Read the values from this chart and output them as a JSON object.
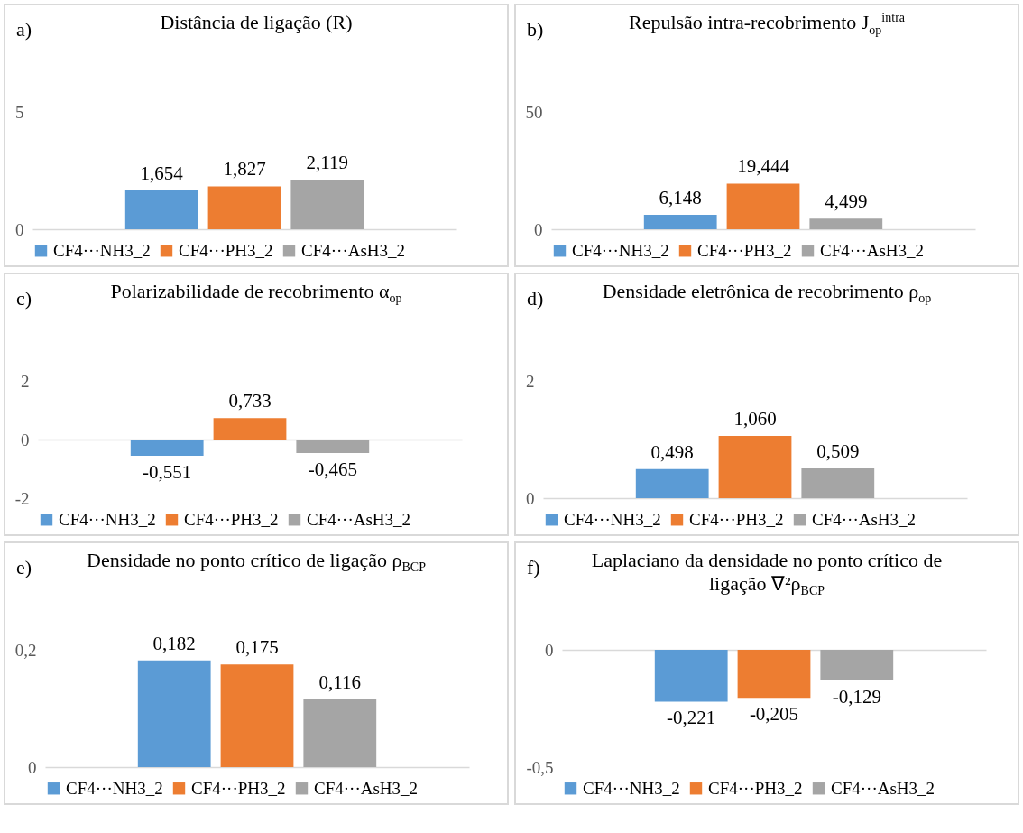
{
  "chart_data": [
    {
      "type": "bar",
      "title": "Distância de ligação (R)",
      "annotations": [
        "a)"
      ],
      "categories": [
        null
      ],
      "series": [
        {
          "name": "CF4···NH3_2",
          "color": "#5b9bd5",
          "values": [
            1.654
          ],
          "value_labels": [
            "1,654"
          ]
        },
        {
          "name": "CF4···PH3_2",
          "color": "#ed7d31",
          "values": [
            1.827
          ],
          "value_labels": [
            "1,827"
          ]
        },
        {
          "name": "CF4···AsH3_2",
          "color": "#a5a5a5",
          "values": [
            2.119
          ],
          "value_labels": [
            "2,119"
          ]
        }
      ],
      "ylim": [
        0,
        5
      ],
      "yticks": [
        0,
        5
      ],
      "legend": "bottom"
    },
    {
      "type": "bar",
      "title": "Repulsão intra-recobrimento J$_{op}$$^{intra}$",
      "annotations": [
        "b)"
      ],
      "categories": [
        null
      ],
      "series": [
        {
          "name": "CF4···NH3_2",
          "color": "#5b9bd5",
          "values": [
            6.148
          ],
          "value_labels": [
            "6,148"
          ]
        },
        {
          "name": "CF4···PH3_2",
          "color": "#ed7d31",
          "values": [
            19.444
          ],
          "value_labels": [
            "19,444"
          ]
        },
        {
          "name": "CF4···AsH3_2",
          "color": "#a5a5a5",
          "values": [
            4.499
          ],
          "value_labels": [
            "4,499"
          ]
        }
      ],
      "ylim": [
        0,
        50
      ],
      "yticks": [
        0,
        50
      ],
      "legend": "bottom"
    },
    {
      "type": "bar",
      "title": "Polarizabilidade de recobrimento α$_{op}$",
      "annotations": [
        "c)"
      ],
      "categories": [
        null
      ],
      "series": [
        {
          "name": "CF4···NH3_2",
          "color": "#5b9bd5",
          "values": [
            -0.551
          ],
          "value_labels": [
            "-0,551"
          ]
        },
        {
          "name": "CF4···PH3_2",
          "color": "#ed7d31",
          "values": [
            0.733
          ],
          "value_labels": [
            "0,733"
          ]
        },
        {
          "name": "CF4···AsH3_2",
          "color": "#a5a5a5",
          "values": [
            -0.465
          ],
          "value_labels": [
            "-0,465"
          ]
        }
      ],
      "ylim": [
        -2,
        2
      ],
      "yticks": [
        -2,
        0,
        2
      ],
      "legend": "bottom"
    },
    {
      "type": "bar",
      "title": "Densidade eletrônica de recobrimento ρ$_{op}$",
      "annotations": [
        "d)"
      ],
      "categories": [
        null
      ],
      "series": [
        {
          "name": "CF4···NH3_2",
          "color": "#5b9bd5",
          "values": [
            0.498
          ],
          "value_labels": [
            "0,498"
          ]
        },
        {
          "name": "CF4···PH3_2",
          "color": "#ed7d31",
          "values": [
            1.06
          ],
          "value_labels": [
            "1,060"
          ]
        },
        {
          "name": "CF4···AsH3_2",
          "color": "#a5a5a5",
          "values": [
            0.509
          ],
          "value_labels": [
            "0,509"
          ]
        }
      ],
      "ylim": [
        0,
        2
      ],
      "yticks": [
        0,
        2
      ],
      "legend": "bottom"
    },
    {
      "type": "bar",
      "title": "Densidade no ponto crítico de ligação ρ$_{BCP}$",
      "annotations": [
        "e)"
      ],
      "categories": [
        null
      ],
      "series": [
        {
          "name": "CF4···NH3_2",
          "color": "#5b9bd5",
          "values": [
            0.182
          ],
          "value_labels": [
            "0,182"
          ]
        },
        {
          "name": "CF4···PH3_2",
          "color": "#ed7d31",
          "values": [
            0.175
          ],
          "value_labels": [
            "0,175"
          ]
        },
        {
          "name": "CF4···AsH3_2",
          "color": "#a5a5a5",
          "values": [
            0.116
          ],
          "value_labels": [
            "0,116"
          ]
        }
      ],
      "ylim": [
        0,
        0.2
      ],
      "yticks": [
        0,
        {
          "value": 0.2,
          "label": "0,2"
        }
      ],
      "legend": "bottom"
    },
    {
      "type": "bar",
      "title": "Laplaciano da densidade no ponto crítico de ligação ∇²ρ$_{BCP}$",
      "annotations": [
        "f)"
      ],
      "categories": [
        null
      ],
      "series": [
        {
          "name": "CF4···NH3_2",
          "color": "#5b9bd5",
          "values": [
            -0.221
          ],
          "value_labels": [
            "-0,221"
          ]
        },
        {
          "name": "CF4···PH3_2",
          "color": "#ed7d31",
          "values": [
            -0.205
          ],
          "value_labels": [
            "-0,205"
          ]
        },
        {
          "name": "CF4···AsH3_2",
          "color": "#a5a5a5",
          "values": [
            -0.129
          ],
          "value_labels": [
            "-0,129"
          ]
        }
      ],
      "ylim": [
        -0.5,
        0
      ],
      "yticks": [
        {
          "value": -0.5,
          "label": "-0,5"
        },
        0
      ],
      "legend": "bottom"
    }
  ]
}
